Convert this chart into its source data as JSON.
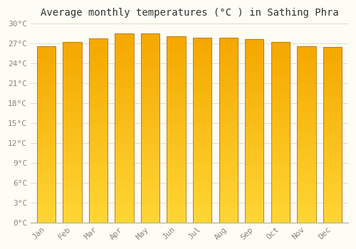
{
  "title": "Average monthly temperatures (°C ) in Sathing Phra",
  "months": [
    "Jan",
    "Feb",
    "Mar",
    "Apr",
    "May",
    "Jun",
    "Jul",
    "Aug",
    "Sep",
    "Oct",
    "Nov",
    "Dec"
  ],
  "values": [
    26.6,
    27.2,
    27.8,
    28.5,
    28.5,
    28.1,
    27.9,
    27.9,
    27.7,
    27.2,
    26.6,
    26.5
  ],
  "bar_color_bottom": "#FFD635",
  "bar_color_top": "#F5A800",
  "bar_edge_color": "#C07000",
  "ylim": [
    0,
    30
  ],
  "yticks": [
    0,
    3,
    6,
    9,
    12,
    15,
    18,
    21,
    24,
    27,
    30
  ],
  "background_color": "#FDFDF5",
  "grid_color": "#DDDDCC",
  "title_fontsize": 10,
  "tick_fontsize": 8,
  "bar_width": 0.72
}
